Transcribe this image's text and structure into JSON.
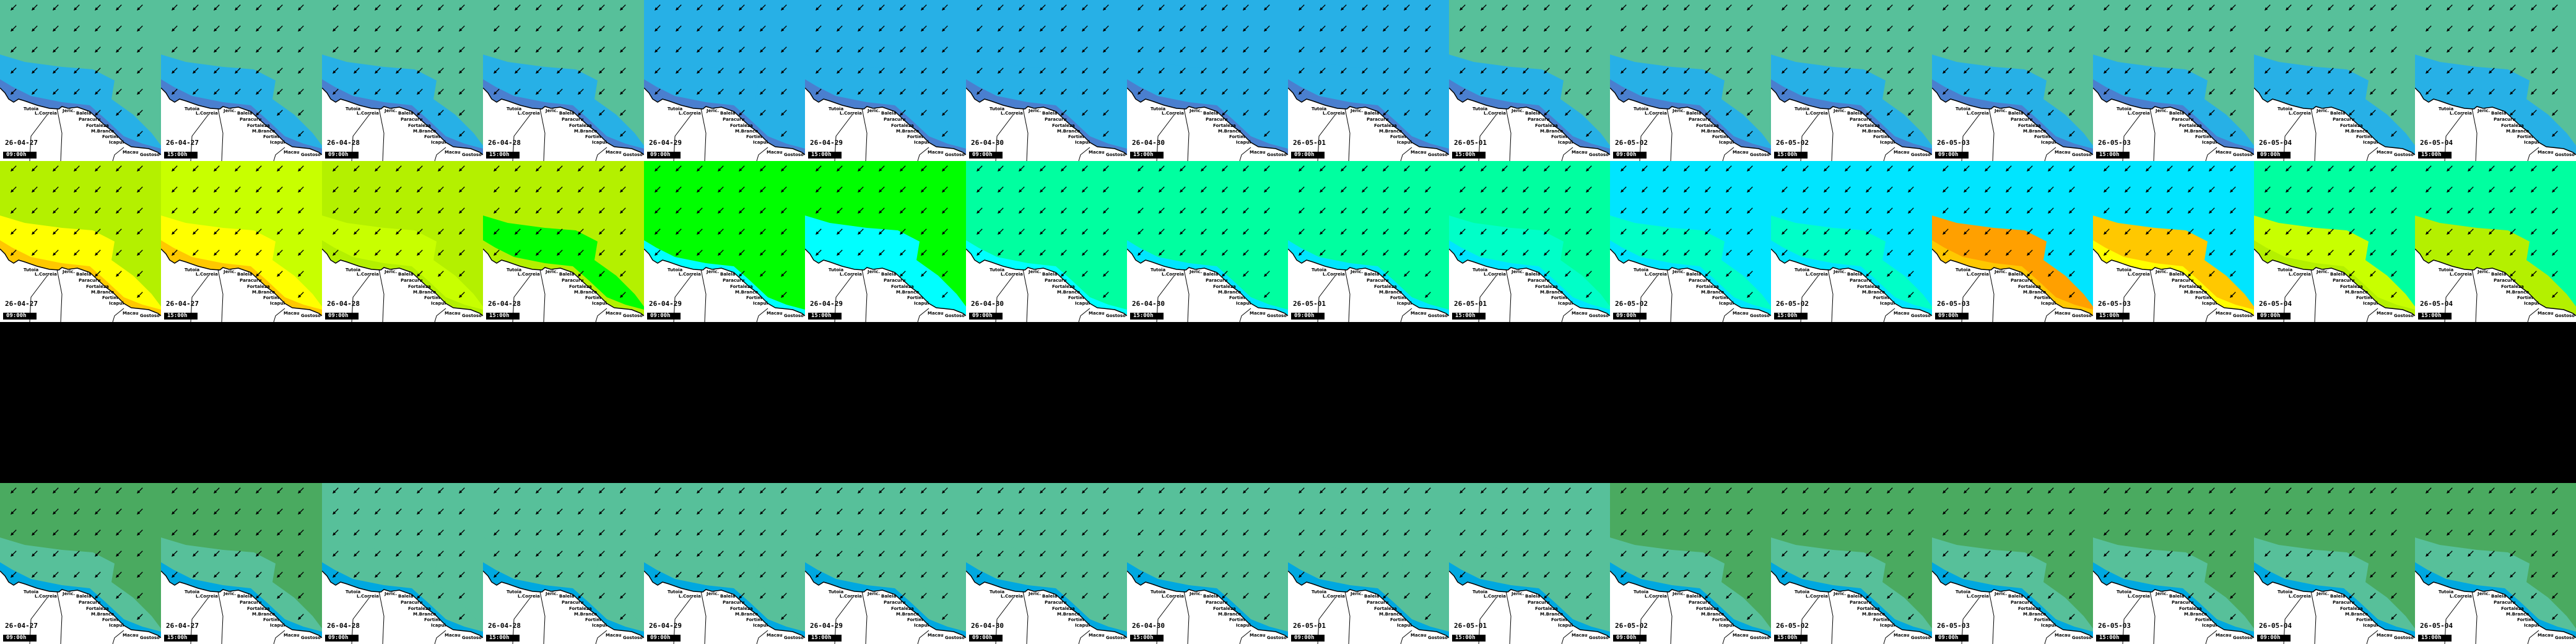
{
  "place_names": [
    "Tutoia",
    "L.Correia",
    "Jeric.",
    "Baleia",
    "Paracuru",
    "Fortaleza",
    "M.Branco",
    "Fortim",
    "Icapui",
    "Macau",
    "Gostoso"
  ],
  "frames": [
    {
      "date": "26-04-27",
      "time": "09:00h"
    },
    {
      "date": "26-04-27",
      "time": "15:00h"
    },
    {
      "date": "26-04-28",
      "time": "09:00h"
    },
    {
      "date": "26-04-28",
      "time": "15:00h"
    },
    {
      "date": "26-04-29",
      "time": "09:00h"
    },
    {
      "date": "26-04-29",
      "time": "15:00h"
    },
    {
      "date": "26-04-30",
      "time": "09:00h"
    },
    {
      "date": "26-04-30",
      "time": "15:00h"
    },
    {
      "date": "26-05-01",
      "time": "09:00h"
    },
    {
      "date": "26-05-01",
      "time": "15:00h"
    },
    {
      "date": "26-05-02",
      "time": "09:00h"
    },
    {
      "date": "26-05-02",
      "time": "15:00h"
    },
    {
      "date": "26-05-03",
      "time": "09:00h"
    },
    {
      "date": "26-05-03",
      "time": "15:00h"
    },
    {
      "date": "26-05-04",
      "time": "09:00h"
    },
    {
      "date": "26-05-04",
      "time": "15:00h"
    }
  ],
  "rows": [
    {
      "name": "row-1",
      "arrow_deg": 225,
      "tiles": [
        [
          "#57c09a",
          "#27b0e6",
          "#4a7fcf"
        ],
        [
          "#57c09a",
          "#27b0e6",
          "#4a7fcf"
        ],
        [
          "#57c09a",
          "#27b0e6",
          "#4a7fcf"
        ],
        [
          "#57c09a",
          "#27b0e6",
          "#4a7fcf"
        ],
        [
          "#27b0e6",
          "#27b0e6",
          "#4a7fcf"
        ],
        [
          "#27b0e6",
          "#27b0e6",
          "#4a7fcf"
        ],
        [
          "#27b0e6",
          "#27b0e6",
          "#4a7fcf"
        ],
        [
          "#27b0e6",
          "#27b0e6",
          "#4a7fcf"
        ],
        [
          "#27b0e6",
          "#27b0e6",
          "#4a7fcf"
        ],
        [
          "#57c09a",
          "#27b0e6",
          "#4a7fcf"
        ],
        [
          "#57c09a",
          "#27b0e6",
          "#4a7fcf"
        ],
        [
          "#57c09a",
          "#27b0e6",
          "#4a7fcf"
        ],
        [
          "#57c09a",
          "#27b0e6",
          "#4a7fcf"
        ],
        [
          "#57c09a",
          "#27b0e6",
          "#4a7fcf"
        ],
        [
          "#57c09a",
          "#27b0e6",
          "#27b0e6"
        ],
        [
          "#57c09a",
          "#27b0e6",
          "#27b0e6"
        ]
      ]
    },
    {
      "name": "row-2",
      "arrow_deg": 225,
      "tiles": [
        [
          "#b4f000",
          "#ffff00",
          "#ffc800"
        ],
        [
          "#c8ff00",
          "#ffff00",
          "#ffc800"
        ],
        [
          "#b4f000",
          "#c8ff00",
          "#b4f000"
        ],
        [
          "#b4f000",
          "#00ff00",
          "#b4f000"
        ],
        [
          "#00ff00",
          "#00ff00",
          "#00ffff"
        ],
        [
          "#00ff00",
          "#00ffff",
          "#00ffff"
        ],
        [
          "#00ffa0",
          "#00ffa0",
          "#00ffff"
        ],
        [
          "#00ffa0",
          "#00ffa0",
          "#00e5ff"
        ],
        [
          "#00ffa0",
          "#00ffa0",
          "#00e5ff"
        ],
        [
          "#00ffa0",
          "#00ffc8",
          "#00e5ff"
        ],
        [
          "#00e5ff",
          "#00ffc8",
          "#00e5ff"
        ],
        [
          "#00e5ff",
          "#00ffc8",
          "#00e5ff"
        ],
        [
          "#00e5ff",
          "#ffa000",
          "#ffc800"
        ],
        [
          "#00e5ff",
          "#ffc800",
          "#ffff00"
        ],
        [
          "#00ffa0",
          "#c8ff00",
          "#b4f000"
        ],
        [
          "#00ffa0",
          "#b4f000",
          "#b4f000"
        ]
      ]
    },
    {
      "name": "row-4",
      "arrow_deg": 225,
      "tiles": [
        [
          "#4aaa60",
          "#57c09a",
          "#00a8e0"
        ],
        [
          "#4aaa60",
          "#57c09a",
          "#00a8e0"
        ],
        [
          "#57c09a",
          "#57c09a",
          "#00a8e0"
        ],
        [
          "#57c09a",
          "#57c09a",
          "#00a8e0"
        ],
        [
          "#57c09a",
          "#57c09a",
          "#00a8e0"
        ],
        [
          "#57c09a",
          "#57c09a",
          "#00a8e0"
        ],
        [
          "#57c09a",
          "#57c09a",
          "#00a8e0"
        ],
        [
          "#57c09a",
          "#57c09a",
          "#00a8e0"
        ],
        [
          "#57c09a",
          "#57c09a",
          "#00a8e0"
        ],
        [
          "#57c09a",
          "#57c09a",
          "#00a8e0"
        ],
        [
          "#4aaa60",
          "#57c09a",
          "#00a8e0"
        ],
        [
          "#4aaa60",
          "#57c09a",
          "#00a8e0"
        ],
        [
          "#4aaa60",
          "#57c09a",
          "#00a8e0"
        ],
        [
          "#4aaa60",
          "#57c09a",
          "#00a8e0"
        ],
        [
          "#4aaa60",
          "#57c09a",
          "#00a8e0"
        ],
        [
          "#4aaa60",
          "#57c09a",
          "#00a8e0"
        ]
      ]
    }
  ]
}
